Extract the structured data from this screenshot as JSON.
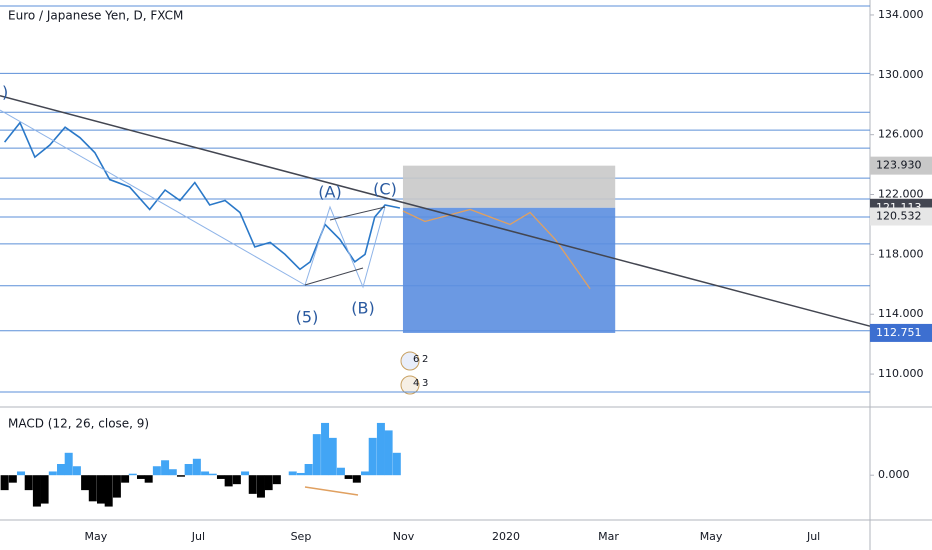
{
  "chart_data": [
    {
      "type": "line",
      "title": "Euro / Japanese Yen, D, FXCM",
      "x": [
        2.22,
        2.52,
        2.81,
        3.1,
        3.4,
        3.69,
        3.98,
        4.27,
        4.66,
        5.05,
        5.35,
        5.64,
        5.93,
        6.22,
        6.52,
        6.81,
        7.1,
        7.4,
        7.69,
        7.98,
        8.18,
        8.47,
        8.76,
        9.05,
        9.25,
        9.44,
        9.64,
        9.93
      ],
      "values": [
        125.5,
        126.8,
        124.5,
        125.3,
        126.5,
        125.8,
        124.8,
        123.0,
        122.5,
        121.0,
        122.3,
        121.6,
        122.8,
        121.3,
        121.6,
        120.8,
        118.5,
        118.8,
        118.0,
        117.0,
        117.5,
        120.0,
        119.0,
        117.5,
        118.0,
        120.5,
        121.3,
        121.1
      ],
      "color": "#2a78c8",
      "xlim": [
        2.13,
        19.1
      ],
      "ylim": [
        107.8,
        135.0
      ],
      "yticks": [
        {
          "value": 134,
          "label": "134.000"
        },
        {
          "value": 130,
          "label": "130.000"
        },
        {
          "value": 126,
          "label": "126.000"
        },
        {
          "value": 122,
          "label": "122.000"
        },
        {
          "value": 118,
          "label": "118.000"
        },
        {
          "value": 114,
          "label": "114.000"
        },
        {
          "value": 110,
          "label": "110.000"
        }
      ],
      "levels": [
        134.6,
        130.1,
        127.5,
        126.3,
        125.1,
        123.1,
        121.7,
        120.5,
        118.7,
        115.9,
        112.9,
        108.8
      ],
      "level_color": "#5b8fd8",
      "trendline": {
        "x": [
          2.13,
          19.1
        ],
        "values": [
          128.6,
          113.2
        ],
        "color": "#434651"
      },
      "projection": {
        "x": [
          9.99,
          10.42,
          11.3,
          12.08,
          12.47,
          12.96,
          13.64
        ],
        "values": [
          120.9,
          120.2,
          121.0,
          120.0,
          120.8,
          119.0,
          115.7
        ],
        "color": "#e0a060"
      },
      "box_x": [
        9.99,
        14.13
      ],
      "price_labels": [
        {
          "value": 123.93,
          "label": "123.930",
          "color": "#c8c8c8"
        },
        {
          "value": 121.113,
          "label": "121.113",
          "color": "#434651"
        },
        {
          "value": 120.532,
          "label": "120.532",
          "color": "#e6e6e6"
        },
        {
          "value": 112.751,
          "label": "112.751",
          "color": "#3d6fd0"
        }
      ],
      "annotations": [
        "(A)",
        "(C)",
        "(5)",
        "(B)",
        ")"
      ],
      "events": [
        "6",
        "2",
        "4",
        "3"
      ]
    },
    {
      "type": "bar",
      "title": "MACD (12, 26, close, 9)",
      "x": [
        2.22,
        2.38,
        2.54,
        2.69,
        2.85,
        3.0,
        3.16,
        3.32,
        3.47,
        3.63,
        3.79,
        3.94,
        4.1,
        4.25,
        4.41,
        4.57,
        4.72,
        4.88,
        5.03,
        5.19,
        5.35,
        5.5,
        5.66,
        5.81,
        5.97,
        6.13,
        6.28,
        6.44,
        6.59,
        6.75,
        6.91,
        7.06,
        7.22,
        7.37,
        7.53,
        7.69,
        7.84,
        8.0,
        8.15,
        8.31,
        8.47,
        8.62,
        8.78,
        8.93,
        9.09,
        9.25,
        9.4,
        9.56,
        9.71,
        9.87
      ],
      "values": [
        -0.2,
        -0.1,
        0.05,
        -0.2,
        -0.42,
        -0.38,
        0.05,
        0.15,
        0.3,
        0.12,
        -0.2,
        -0.35,
        -0.38,
        -0.42,
        -0.3,
        -0.1,
        0.02,
        -0.05,
        -0.1,
        0.12,
        0.2,
        0.08,
        -0.02,
        0.15,
        0.22,
        0.05,
        0.02,
        -0.05,
        -0.15,
        -0.12,
        0.05,
        -0.25,
        -0.3,
        -0.2,
        -0.12,
        0.0,
        0.05,
        0.03,
        0.15,
        0.55,
        0.7,
        0.5,
        0.1,
        -0.05,
        -0.1,
        0.05,
        0.5,
        0.7,
        0.6,
        0.3
      ],
      "colors": {
        "positive": "#42a5f5",
        "negative": "#000000"
      },
      "xlim": [
        2.13,
        19.1
      ],
      "ylim": [
        -0.6,
        0.9
      ],
      "yticks": [
        {
          "value": 0,
          "label": "0.000"
        }
      ],
      "xticks": [
        {
          "value": 4,
          "label": "May"
        },
        {
          "value": 6,
          "label": "Jul"
        },
        {
          "value": 8,
          "label": "Sep"
        },
        {
          "value": 10,
          "label": "Nov"
        },
        {
          "value": 12,
          "label": "2020"
        },
        {
          "value": 14,
          "label": "Mar"
        },
        {
          "value": 16,
          "label": "May"
        },
        {
          "value": 18,
          "label": "Jul"
        }
      ]
    }
  ]
}
